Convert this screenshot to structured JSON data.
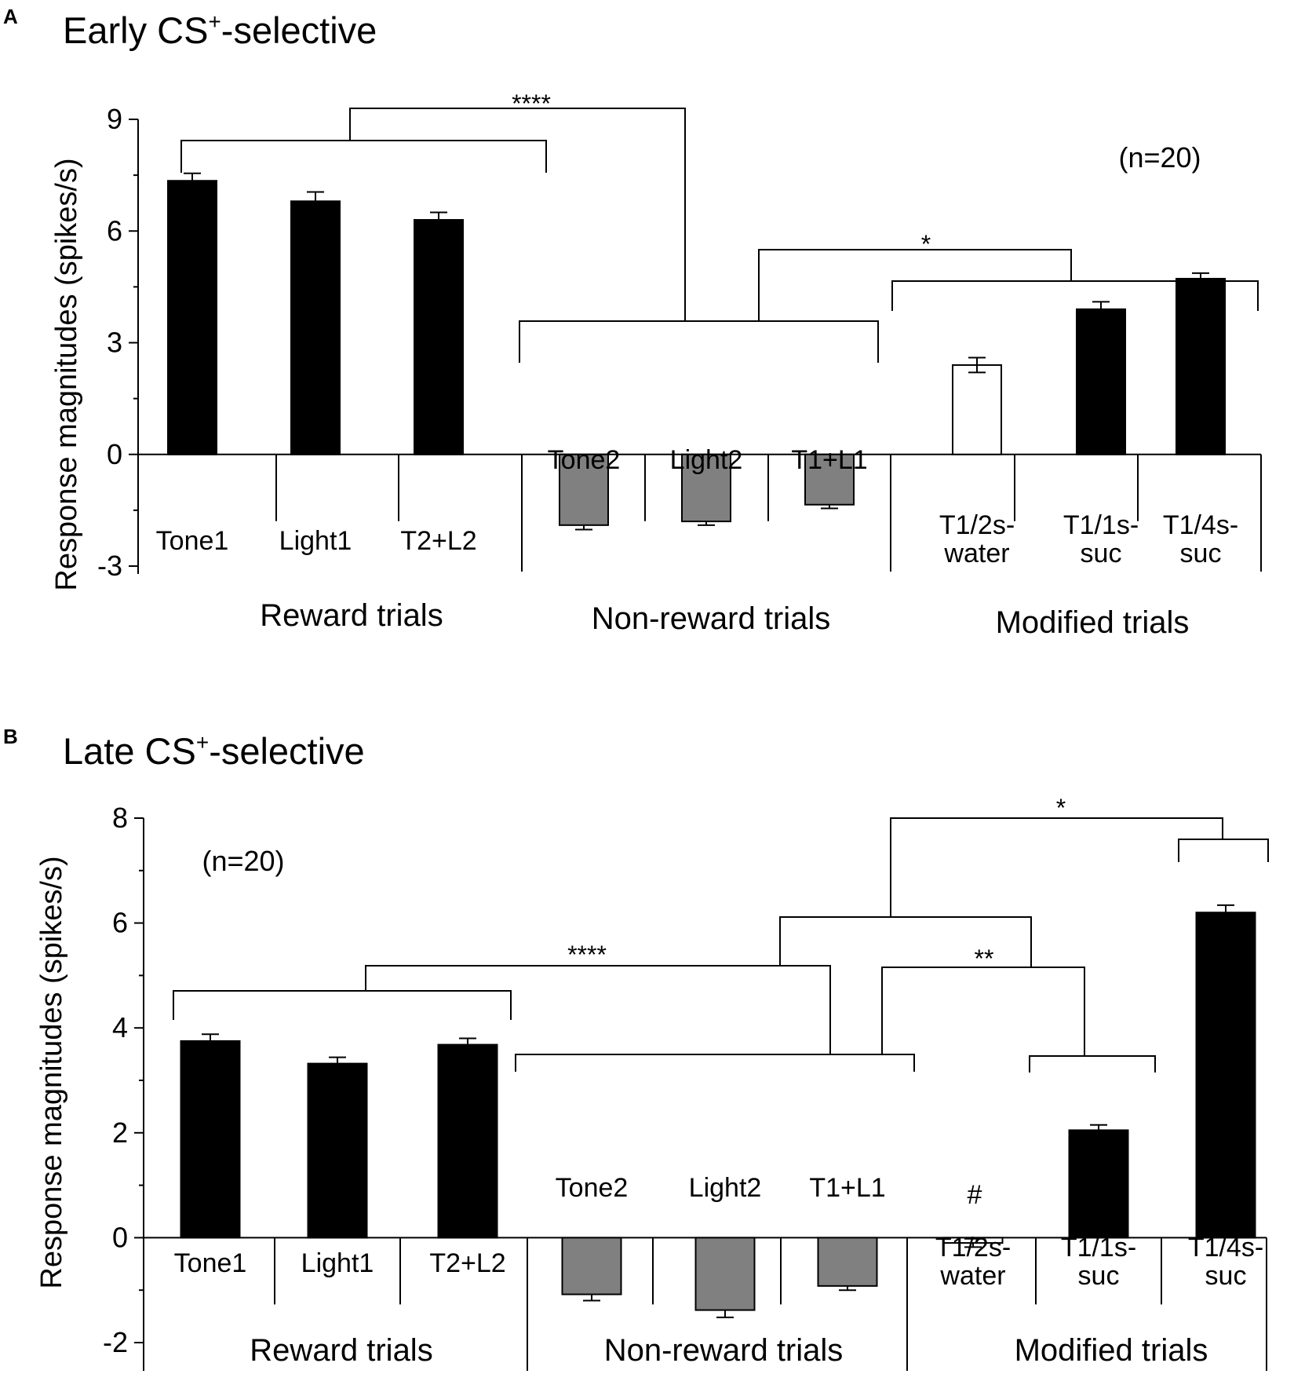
{
  "chart_data": [
    {
      "type": "bar",
      "panel_label": "A",
      "title_prefix": "Early CS",
      "title_superscript": "+",
      "title_suffix": "-selective",
      "ylabel": "Response magnitudes (spikes/s)",
      "ylim": [
        -3,
        9
      ],
      "yticks": [
        -3,
        0,
        3,
        6,
        9
      ],
      "n_label": "(n=20)",
      "categories": [
        "Tone1",
        "Light1",
        "T2+L2",
        "Tone2",
        "Light2",
        "T1+L1",
        "T1/2s-water",
        "T1/1s-suc",
        "T1/4s-suc"
      ],
      "category_lines": [
        [
          "Tone1"
        ],
        [
          "Light1"
        ],
        [
          "T2+L2"
        ],
        [
          "Tone2"
        ],
        [
          "Light2"
        ],
        [
          "T1+L1"
        ],
        [
          "T1/2s-",
          "water"
        ],
        [
          "T1/1s-",
          "suc"
        ],
        [
          "T1/4s-",
          "suc"
        ]
      ],
      "values": [
        7.35,
        6.8,
        6.3,
        -1.9,
        -1.8,
        -1.35,
        2.4,
        3.9,
        4.72
      ],
      "errors": [
        0.2,
        0.25,
        0.2,
        0.12,
        0.1,
        0.1,
        0.2,
        0.2,
        0.15
      ],
      "bar_colors": [
        "#000000",
        "#000000",
        "#000000",
        "#808080",
        "#808080",
        "#808080",
        "#ffffff",
        "#000000",
        "#000000"
      ],
      "groups": [
        {
          "label": "Reward trials"
        },
        {
          "label": "Non-reward trials"
        },
        {
          "label": "Modified trials"
        }
      ],
      "annotations": [
        {
          "text": "****"
        },
        {
          "text": "*"
        }
      ]
    },
    {
      "type": "bar",
      "panel_label": "B",
      "title_prefix": "Late CS",
      "title_superscript": "+",
      "title_suffix": "-selective",
      "ylabel": "Response magnitudes (spikes/s)",
      "ylim": [
        -2,
        8
      ],
      "yticks": [
        -2,
        0,
        2,
        4,
        6,
        8
      ],
      "n_label": "(n=20)",
      "categories": [
        "Tone1",
        "Light1",
        "T2+L2",
        "Tone2",
        "Light2",
        "T1+L1",
        "T1/2s-water",
        "T1/1s-suc",
        "T1/4s-suc"
      ],
      "category_lines": [
        [
          "Tone1"
        ],
        [
          "Light1"
        ],
        [
          "T2+L2"
        ],
        [
          "Tone2"
        ],
        [
          "Light2"
        ],
        [
          "T1+L1"
        ],
        [
          "T1/2s-",
          "water"
        ],
        [
          "T1/1s-",
          "suc"
        ],
        [
          "T1/4s-",
          "suc"
        ]
      ],
      "values": [
        3.75,
        3.32,
        3.68,
        -1.08,
        -1.38,
        -0.92,
        -0.1,
        2.05,
        6.2
      ],
      "errors": [
        0.13,
        0.12,
        0.12,
        0.12,
        0.14,
        0.08,
        0.08,
        0.1,
        0.14
      ],
      "bar_colors": [
        "#000000",
        "#000000",
        "#000000",
        "#808080",
        "#808080",
        "#808080",
        "#ffffff",
        "#000000",
        "#000000"
      ],
      "groups": [
        {
          "label": "Reward trials"
        },
        {
          "label": "Non-reward trials"
        },
        {
          "label": "Modified trials"
        }
      ],
      "annotations": [
        {
          "text": "****"
        },
        {
          "text": "**"
        },
        {
          "text": "*"
        },
        {
          "text": "#"
        }
      ]
    }
  ]
}
